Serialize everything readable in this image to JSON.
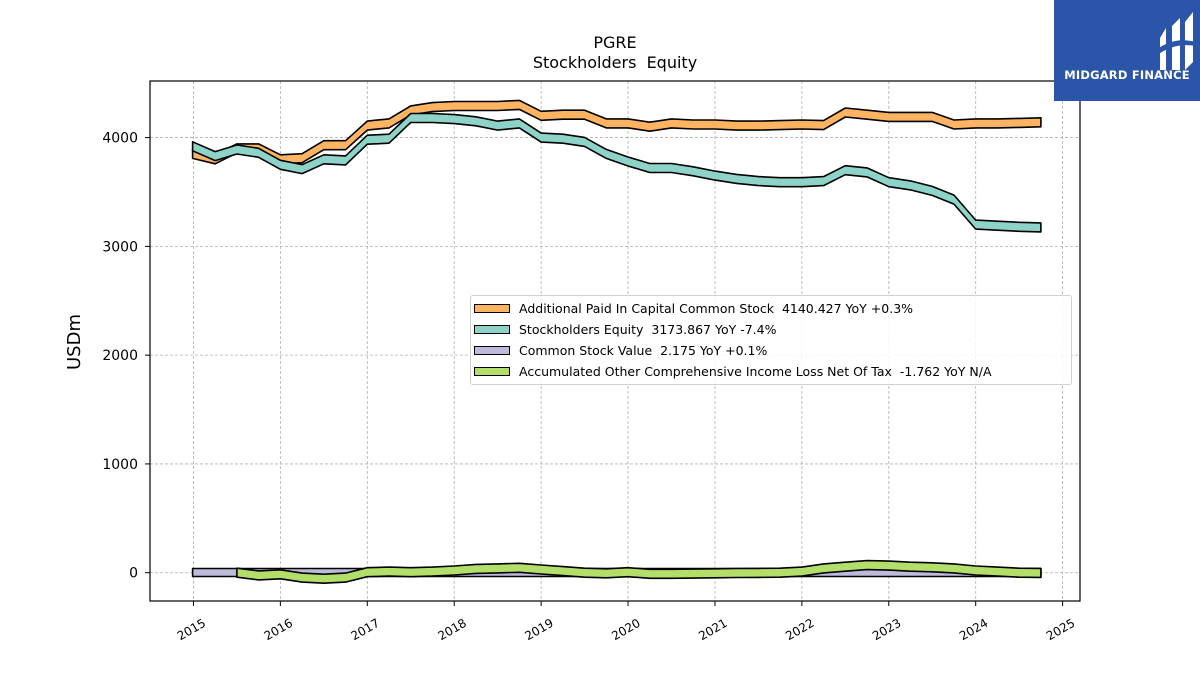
{
  "title": "PGRE",
  "subtitle": "Stockholders  Equity",
  "brand": {
    "name": "MIDGARD FINANCE",
    "color": "#2a55a8",
    "icon": "midgard-logo-icon"
  },
  "chart_data": {
    "type": "area",
    "title": "PGRE",
    "subtitle": "Stockholders  Equity",
    "ylabel": "USDm",
    "xlabel": "",
    "ylim": [
      -260,
      4520
    ],
    "xlim": [
      2014.5,
      2025.2
    ],
    "yticks": [
      0,
      1000,
      2000,
      3000,
      4000
    ],
    "ytick_labels": [
      "0",
      "1000",
      "2000",
      "3000",
      "4000"
    ],
    "xticks": [
      2015,
      2016,
      2017,
      2018,
      2019,
      2020,
      2021,
      2022,
      2023,
      2024,
      2025
    ],
    "xtick_labels": [
      "2015",
      "2016",
      "2017",
      "2018",
      "2019",
      "2020",
      "2021",
      "2022",
      "2023",
      "2024",
      "2025"
    ],
    "grid": true,
    "legend_position": "center-right",
    "series": [
      {
        "name": "Additional Paid In Capital Common Stock",
        "legend_label": "Additional Paid In Capital Common Stock  4140.427 YoY +0.3%",
        "color": "#fdb462",
        "x": [
          2014.99,
          2015.25,
          2015.5,
          2015.75,
          2016.0,
          2016.25,
          2016.5,
          2016.75,
          2017.0,
          2017.25,
          2017.5,
          2017.75,
          2018.0,
          2018.25,
          2018.5,
          2018.75,
          2019.0,
          2019.25,
          2019.5,
          2019.75,
          2020.0,
          2020.25,
          2020.5,
          2020.75,
          2021.0,
          2021.25,
          2021.5,
          2021.75,
          2022.0,
          2022.25,
          2022.5,
          2022.75,
          2023.0,
          2023.25,
          2023.5,
          2023.75,
          2024.0,
          2024.25,
          2024.5,
          2024.75
        ],
        "y": [
          3850,
          3800,
          3900,
          3900,
          3800,
          3810,
          3930,
          3930,
          4110,
          4130,
          4250,
          4280,
          4290,
          4290,
          4290,
          4300,
          4200,
          4210,
          4210,
          4130,
          4130,
          4100,
          4130,
          4120,
          4120,
          4110,
          4110,
          4115,
          4120,
          4115,
          4230,
          4210,
          4190,
          4190,
          4190,
          4120,
          4130,
          4130,
          4135,
          4140
        ]
      },
      {
        "name": "Stockholders Equity",
        "legend_label": "Stockholders Equity  3173.867 YoY -7.4%",
        "color": "#8dd3c7",
        "x": [
          2014.99,
          2015.25,
          2015.5,
          2015.75,
          2016.0,
          2016.25,
          2016.5,
          2016.75,
          2017.0,
          2017.25,
          2017.5,
          2017.75,
          2018.0,
          2018.25,
          2018.5,
          2018.75,
          2019.0,
          2019.25,
          2019.5,
          2019.75,
          2020.0,
          2020.25,
          2020.5,
          2020.75,
          2021.0,
          2021.25,
          2021.5,
          2021.75,
          2022.0,
          2022.25,
          2022.5,
          2022.75,
          2023.0,
          2023.25,
          2023.5,
          2023.75,
          2024.0,
          2024.25,
          2024.5,
          2024.75
        ],
        "y": [
          3920,
          3830,
          3890,
          3860,
          3750,
          3710,
          3800,
          3790,
          3980,
          3990,
          4180,
          4180,
          4170,
          4150,
          4110,
          4130,
          4000,
          3990,
          3960,
          3850,
          3780,
          3720,
          3720,
          3690,
          3650,
          3620,
          3600,
          3590,
          3590,
          3600,
          3700,
          3680,
          3590,
          3560,
          3510,
          3430,
          3200,
          3190,
          3180,
          3174
        ]
      },
      {
        "name": "Common Stock Value",
        "legend_label": "Common Stock Value  2.175 YoY +0.1%",
        "color": "#bebada",
        "x": [
          2014.99,
          2024.75
        ],
        "y": [
          2.175,
          2.175
        ]
      },
      {
        "name": "Accumulated Other Comprehensive Income Loss Net Of Tax",
        "legend_label": "Accumulated Other Comprehensive Income Loss Net Of Tax  -1.762 YoY N/A",
        "color": "#b3de69",
        "x": [
          2015.5,
          2015.75,
          2016.0,
          2016.25,
          2016.5,
          2016.75,
          2017.0,
          2017.25,
          2017.5,
          2017.75,
          2018.0,
          2018.25,
          2018.5,
          2018.75,
          2019.0,
          2019.25,
          2019.5,
          2019.75,
          2020.0,
          2020.25,
          2020.5,
          2020.75,
          2021.0,
          2021.25,
          2021.5,
          2021.75,
          2022.0,
          2022.25,
          2022.5,
          2022.75,
          2023.0,
          2023.25,
          2023.5,
          2023.75,
          2024.0,
          2024.25,
          2024.5,
          2024.75
        ],
        "y": [
          0,
          -25,
          -15,
          -45,
          -55,
          -45,
          5,
          10,
          5,
          10,
          20,
          35,
          40,
          45,
          30,
          15,
          0,
          -5,
          5,
          -10,
          -10,
          -8,
          -5,
          -3,
          -2,
          0,
          10,
          40,
          55,
          70,
          65,
          55,
          50,
          40,
          20,
          10,
          0,
          -2
        ]
      }
    ]
  }
}
